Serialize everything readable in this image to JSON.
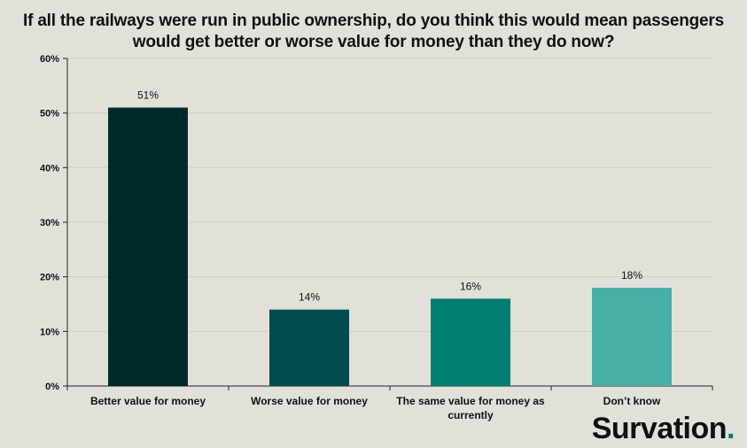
{
  "chart_data": {
    "type": "bar",
    "title": "If all the railways were run in public ownership, do you think this would mean passengers would get better or worse value for money than they do now?",
    "categories": [
      "Better value for money",
      "Worse value for money",
      "The same value for money as currently",
      "Don't know"
    ],
    "values": [
      51,
      14,
      16,
      18
    ],
    "data_labels": [
      "51%",
      "14%",
      "16%",
      "18%"
    ],
    "bar_colors": [
      "#012b2b",
      "#024c4f",
      "#017e72",
      "#4aaea6"
    ],
    "ylim": [
      0,
      60
    ],
    "y_ticks": [
      0,
      10,
      20,
      30,
      40,
      50,
      60
    ],
    "y_tick_labels": [
      "0%",
      "10%",
      "20%",
      "30%",
      "40%",
      "50%",
      "60%"
    ],
    "grid": true,
    "xlabel": "",
    "ylabel": ""
  },
  "brand": {
    "logo_text": "Survation",
    "logo_dot": ".",
    "logo_dot_color": "#017e72"
  }
}
